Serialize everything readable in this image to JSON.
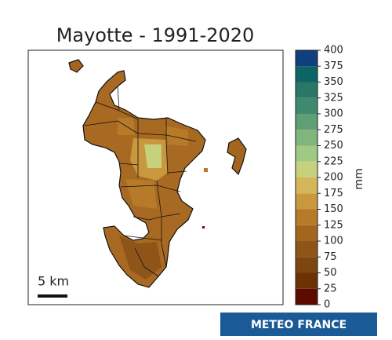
{
  "title": "Mayotte - 1991-2020",
  "colorbar": {
    "label": "mm",
    "lim": [
      0,
      400
    ],
    "ticks": [
      0,
      25,
      50,
      75,
      100,
      125,
      150,
      175,
      200,
      225,
      250,
      275,
      300,
      325,
      350,
      375,
      400
    ],
    "colors": [
      "#5c0a00",
      "#6b3206",
      "#7d4510",
      "#8f5518",
      "#a4661f",
      "#b67a28",
      "#c9973e",
      "#d4b55a",
      "#c6d17e",
      "#a0c983",
      "#80b67b",
      "#5e9f74",
      "#3f8a6e",
      "#2a7768",
      "#0d6563",
      "#0f3f7e"
    ]
  },
  "scale_bar": "5 km",
  "logo": "METEO FRANCE"
}
